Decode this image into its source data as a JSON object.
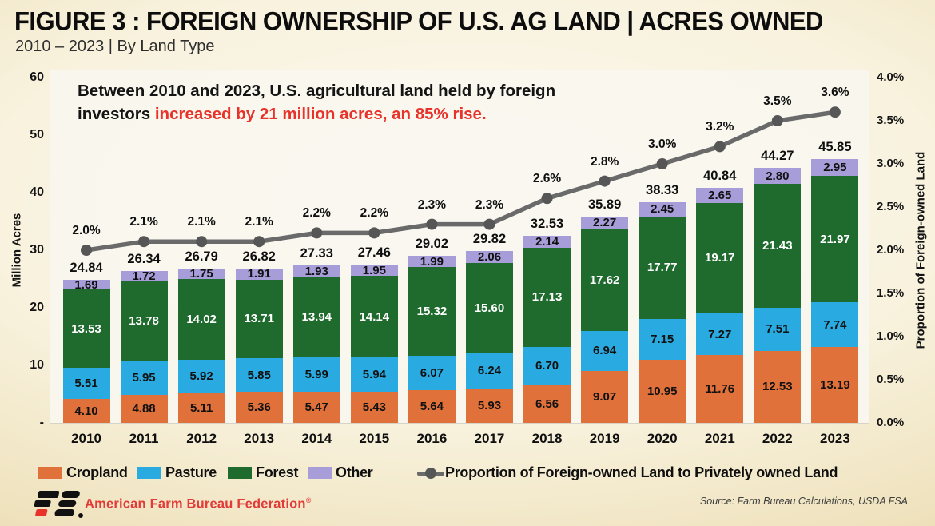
{
  "header": {
    "title": "FIGURE 3 : FOREIGN OWNERSHIP OF U.S. AG LAND | ACRES OWNED",
    "subtitle": "2010 – 2023 | By Land Type"
  },
  "annotation": {
    "line1": "Between 2010 and 2023, U.S. agricultural land held by foreign",
    "line2_black": "investors ",
    "line2_red": "increased by 21 million acres, an 85% rise."
  },
  "chart_data": {
    "type": "bar",
    "categories": [
      "2010",
      "2011",
      "2012",
      "2013",
      "2014",
      "2015",
      "2016",
      "2017",
      "2018",
      "2019",
      "2020",
      "2021",
      "2022",
      "2023"
    ],
    "series": [
      {
        "name": "Cropland",
        "color": "#e0713a",
        "label_color": "#111111",
        "values": [
          4.1,
          4.88,
          5.11,
          5.36,
          5.47,
          5.43,
          5.64,
          5.93,
          6.56,
          9.07,
          10.95,
          11.76,
          12.53,
          13.19
        ]
      },
      {
        "name": "Pasture",
        "color": "#29abe2",
        "label_color": "#111111",
        "values": [
          5.51,
          5.95,
          5.92,
          5.85,
          5.99,
          5.94,
          6.07,
          6.24,
          6.7,
          6.94,
          7.15,
          7.27,
          7.51,
          7.74
        ]
      },
      {
        "name": "Forest",
        "color": "#1f6b2e",
        "label_color": "#ffffff",
        "values": [
          13.53,
          13.78,
          14.02,
          13.71,
          13.94,
          14.14,
          15.32,
          15.6,
          17.13,
          17.62,
          17.77,
          19.17,
          21.43,
          21.97
        ]
      },
      {
        "name": "Other",
        "color": "#a79dd8",
        "label_color": "#111111",
        "values": [
          1.69,
          1.72,
          1.75,
          1.91,
          1.93,
          1.95,
          1.99,
          2.06,
          2.14,
          2.27,
          2.45,
          2.65,
          2.8,
          2.95
        ]
      }
    ],
    "totals": [
      24.84,
      26.34,
      26.79,
      26.82,
      27.33,
      27.46,
      29.02,
      29.82,
      32.53,
      35.89,
      38.33,
      40.84,
      44.27,
      45.85
    ],
    "line_series": {
      "name": "Proportion of Foreign-owned Land to Privately owned Land",
      "color": "#6a6a6a",
      "dot_color": "#565656",
      "values": [
        2.0,
        2.1,
        2.1,
        2.1,
        2.2,
        2.2,
        2.3,
        2.3,
        2.6,
        2.8,
        3.0,
        3.2,
        3.5,
        3.6
      ]
    },
    "title": "Foreign Ownership of U.S. Ag Land | Acres Owned",
    "xlabel": "",
    "ylabel": "Million Acres",
    "y2label": "Proportion of Foreign-owned Land",
    "ylim": [
      0,
      60
    ],
    "y2lim": [
      0,
      4.0
    ],
    "yticks": [
      "60",
      "50",
      "40",
      "30",
      "20",
      "10",
      "-"
    ],
    "y2ticks": [
      "4.0%",
      "3.5%",
      "3.0%",
      "2.5%",
      "2.0%",
      "1.5%",
      "1.0%",
      "0.5%",
      "0.0%"
    ],
    "grid": false,
    "legend_position": "bottom"
  },
  "footer": {
    "logo_text": "FB",
    "brand": "American Farm Bureau Federation",
    "brand_reg": "®",
    "source": "Source: Farm Bureau Calculations, USDA FSA"
  }
}
